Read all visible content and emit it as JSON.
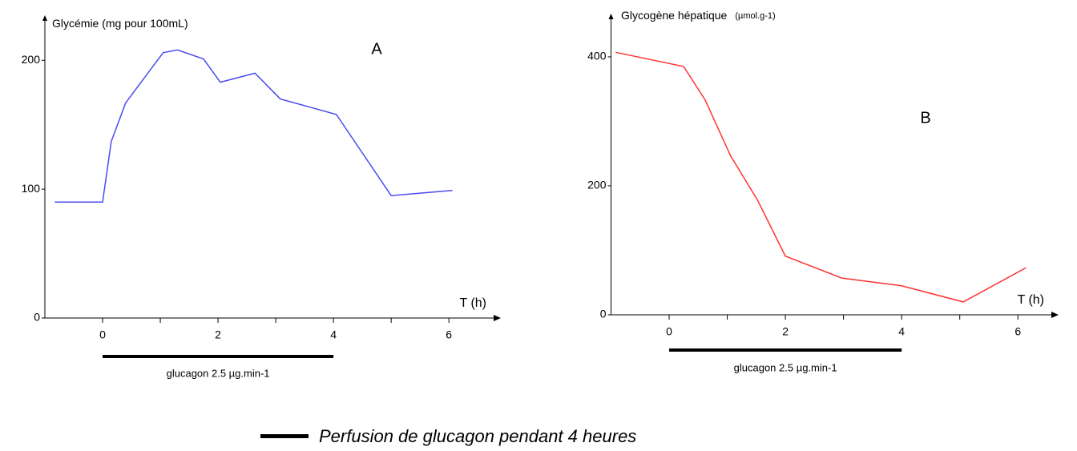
{
  "chart_data": [
    {
      "type": "line",
      "panel_label": "A",
      "ylabel": "Glycémie (mg pour 100mL)",
      "xlabel": "T (h)",
      "x": [
        -0.83,
        0,
        0.15,
        0.4,
        1.05,
        1.3,
        1.75,
        2.04,
        2.64,
        3.08,
        4.05,
        5.0,
        6.06
      ],
      "series": [
        {
          "color": "#4b4bf0",
          "values": [
            90,
            90,
            137,
            167,
            206,
            208,
            201,
            183,
            190,
            170,
            158,
            95,
            99
          ]
        }
      ],
      "xlim": [
        -1,
        6.9
      ],
      "xticks": [
        0,
        2,
        4,
        6
      ],
      "xminorticks": [
        1,
        3,
        5
      ],
      "ylim": [
        0,
        235
      ],
      "yticks": [
        0,
        100,
        200
      ],
      "annotation_bar": {
        "label": "glucagon 2.5 µg.min-1",
        "x": [
          0,
          4
        ]
      }
    },
    {
      "type": "line",
      "panel_label": "B",
      "ylabel": "Glycogène hépatique",
      "ylabel_unit": "(µmol.g-1)",
      "xlabel": "T (h)",
      "x": [
        -0.92,
        0.25,
        0.62,
        1.06,
        1.52,
        2.0,
        2.97,
        4.0,
        5.06,
        6.14
      ],
      "series": [
        {
          "color": "#ff3333",
          "values": [
            407,
            385,
            333,
            246,
            178,
            91,
            57,
            45,
            20,
            73
          ]
        }
      ],
      "xlim": [
        -1,
        6.7
      ],
      "xticks": [
        0,
        2,
        4,
        6
      ],
      "xminorticks": [
        1,
        3,
        5
      ],
      "ylim": [
        0,
        467
      ],
      "yticks": [
        0,
        200,
        400
      ],
      "annotation_bar": {
        "label": "glucagon 2.5 µg.min-1",
        "x": [
          0,
          4
        ]
      }
    }
  ],
  "legend": "Perfusion de glucagon pendant 4 heures"
}
